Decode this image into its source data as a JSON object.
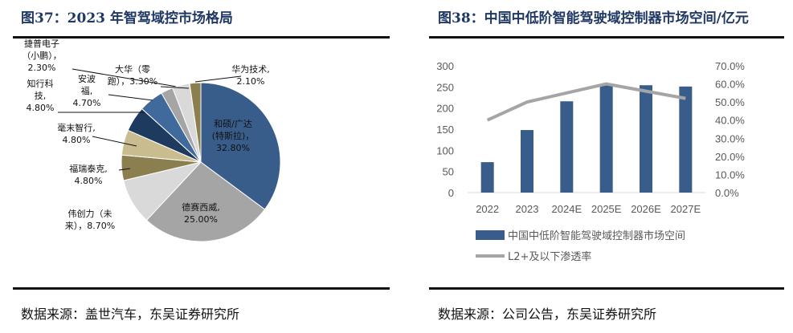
{
  "left": {
    "title": "图37：2023 年智驾域控市场格局",
    "source": "数据来源：盖世汽车，东吴证券研究所"
  },
  "right": {
    "title": "图38：中国中低阶智能驾驶域控制器市场空间/亿元",
    "source": "数据来源：公司公告，东吴证券研究所"
  },
  "chart_data": [
    {
      "type": "pie",
      "slices": [
        {
          "label": [
            "和硕/广达",
            "(特斯拉)，",
            "32.80%"
          ],
          "value": 32.8,
          "color": "#385d8a"
        },
        {
          "label": [
            "德赛西威,",
            "25.00%"
          ],
          "value": 25.0,
          "color": "#a5a5a5"
        },
        {
          "label": [
            "伟创力（未",
            "来），8.70%"
          ],
          "value": 8.7,
          "color": "#d9d9d9"
        },
        {
          "label": [
            "福瑞泰克,",
            "4.80%"
          ],
          "value": 4.8,
          "color": "#8c7f4f"
        },
        {
          "label": [
            "毫末智行,",
            "4.80%"
          ],
          "value": 4.8,
          "color": "#c9bd8f"
        },
        {
          "label": [
            "知行科",
            "技,",
            "4.80%"
          ],
          "value": 4.8,
          "color": "#1f3a5f"
        },
        {
          "label": [
            "安波",
            "福,",
            "4.70%"
          ],
          "value": 4.7,
          "color": "#416a9c"
        },
        {
          "label": [
            "捷普电子",
            "（小鹏），",
            "2.30%"
          ],
          "value": 2.3,
          "color": "#a5a5a5"
        },
        {
          "label": [
            "大华（零",
            "跑），3.30%"
          ],
          "value": 3.3,
          "color": "#d9d9d9"
        },
        {
          "label": [
            "华为技术,",
            "2.10%"
          ],
          "value": 2.1,
          "color": "#8c7f4f"
        }
      ]
    },
    {
      "type": "bar+line",
      "categories": [
        "2022",
        "2023",
        "2024E",
        "2025E",
        "2026E",
        "2027E"
      ],
      "series": [
        {
          "name": "中国中低阶智能驾驶域控制器市场空间",
          "type": "bar",
          "axis": "left",
          "values": [
            72,
            148,
            216,
            256,
            254,
            251
          ],
          "color": "#385d8a"
        },
        {
          "name": "L2+及以下渗透率",
          "type": "line",
          "axis": "right",
          "values": [
            0.4,
            0.5,
            0.55,
            0.6,
            0.56,
            0.52
          ],
          "color": "#a5a5a5"
        }
      ],
      "yleft": {
        "ticks": [
          "0",
          "50",
          "100",
          "150",
          "200",
          "250",
          "300"
        ],
        "range": [
          0,
          300
        ]
      },
      "yright": {
        "ticks": [
          "0.0%",
          "10.0%",
          "20.0%",
          "30.0%",
          "40.0%",
          "50.0%",
          "60.0%",
          "70.0%"
        ],
        "range": [
          0,
          0.7
        ]
      },
      "legend": "bottom"
    }
  ]
}
